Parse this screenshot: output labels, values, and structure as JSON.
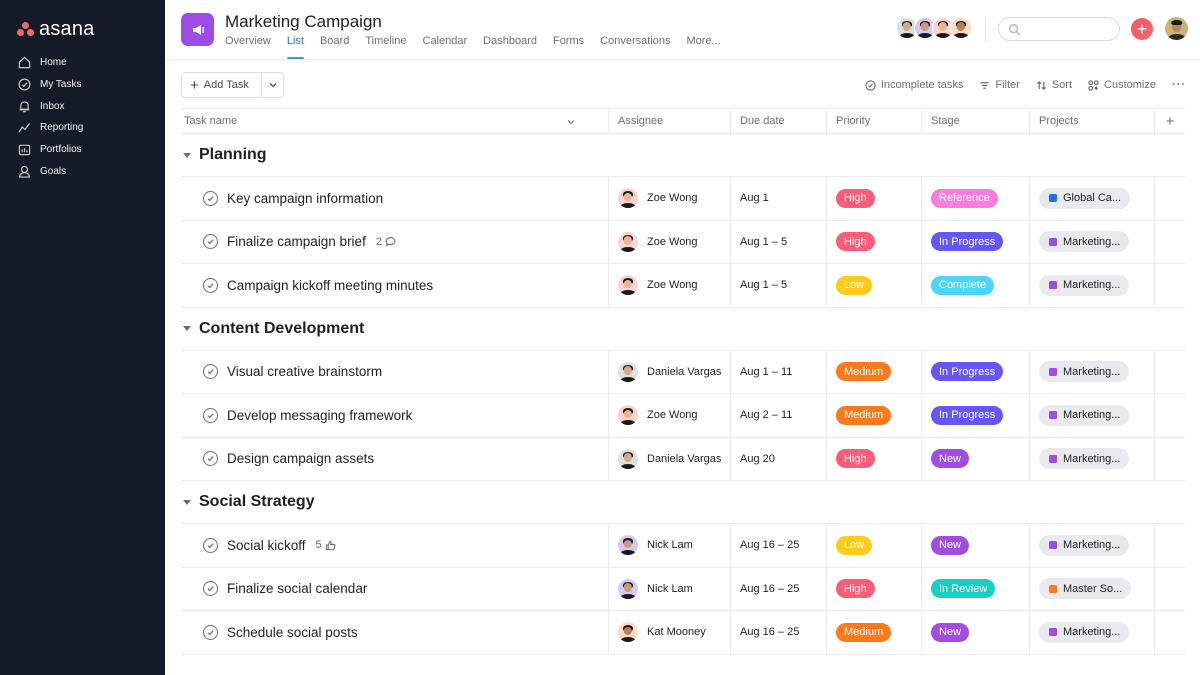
{
  "sidebar": {
    "logo_text": "asana",
    "items": [
      {
        "label": "Home",
        "icon": "home-icon"
      },
      {
        "label": "My Tasks",
        "icon": "check-circle-icon"
      },
      {
        "label": "Inbox",
        "icon": "bell-icon"
      },
      {
        "label": "Reporting",
        "icon": "trend-line-icon"
      },
      {
        "label": "Portfolios",
        "icon": "portfolio-icon"
      },
      {
        "label": "Goals",
        "icon": "person-goal-icon"
      }
    ]
  },
  "header": {
    "project_title": "Marketing Campaign",
    "project_icon": "megaphone-icon",
    "project_icon_color": "#9d4de4",
    "tabs": [
      {
        "label": "Overview",
        "active": false
      },
      {
        "label": "List",
        "active": true
      },
      {
        "label": "Board",
        "active": false
      },
      {
        "label": "Timeline",
        "active": false
      },
      {
        "label": "Calendar",
        "active": false
      },
      {
        "label": "Dashboard",
        "active": false
      },
      {
        "label": "Forms",
        "active": false
      },
      {
        "label": "Conversations",
        "active": false
      },
      {
        "label": "More...",
        "active": false
      }
    ],
    "members": [
      "Daniela Vargas",
      "Nick Lam",
      "Zoe Wong",
      "Kat Mooney"
    ],
    "search_placeholder": "",
    "add_button": "+"
  },
  "toolbar": {
    "add_task_label": "Add Task",
    "incomplete_label": "Incomplete tasks",
    "filter_label": "Filter",
    "sort_label": "Sort",
    "customize_label": "Customize",
    "more_label": "···"
  },
  "table": {
    "columns": {
      "name": "Task name",
      "assignee": "Assignee",
      "due": "Due date",
      "priority": "Priority",
      "stage": "Stage",
      "projects": "Projects",
      "add": "+"
    },
    "sections": [
      {
        "title": "Planning",
        "tasks": [
          {
            "name": "Key campaign information",
            "meta": "",
            "meta_icon": "",
            "assignee": "Zoe Wong",
            "due": "Aug 1",
            "priority": "High",
            "stage": "Reference",
            "project": "Global Ca...",
            "project_color": "#1f6feb"
          },
          {
            "name": "Finalize campaign brief",
            "meta": "2",
            "meta_icon": "comment-icon",
            "assignee": "Zoe Wong",
            "due": "Aug 1 – 5",
            "priority": "High",
            "stage": "In Progress",
            "project": "Marketing...",
            "project_color": "#a04de0"
          },
          {
            "name": "Campaign kickoff meeting minutes",
            "meta": "",
            "meta_icon": "",
            "assignee": "Zoe Wong",
            "due": "Aug 1 – 5",
            "priority": "Low",
            "stage": "Complete",
            "project": "Marketing...",
            "project_color": "#a04de0"
          }
        ]
      },
      {
        "title": "Content Development",
        "tasks": [
          {
            "name": "Visual creative brainstorm",
            "meta": "",
            "meta_icon": "",
            "assignee": "Daniela Vargas",
            "due": "Aug 1 – 11",
            "priority": "Medium",
            "stage": "In Progress",
            "project": "Marketing...",
            "project_color": "#a04de0"
          },
          {
            "name": "Develop messaging framework",
            "meta": "",
            "meta_icon": "",
            "assignee": "Zoe Wong",
            "due": "Aug 2 – 11",
            "priority": "Medium",
            "stage": "In Progress",
            "project": "Marketing...",
            "project_color": "#a04de0"
          },
          {
            "name": "Design campaign assets",
            "meta": "",
            "meta_icon": "",
            "assignee": "Daniela Vargas",
            "due": "Aug 20",
            "priority": "High",
            "stage": "New",
            "project": "Marketing...",
            "project_color": "#a04de0"
          }
        ]
      },
      {
        "title": "Social Strategy",
        "tasks": [
          {
            "name": "Social kickoff",
            "meta": "5",
            "meta_icon": "thumbs-up-icon",
            "assignee": "Nick Lam",
            "due": "Aug 16 – 25",
            "priority": "Low",
            "stage": "New",
            "project": "Marketing...",
            "project_color": "#a04de0"
          },
          {
            "name": "Finalize social calendar",
            "meta": "",
            "meta_icon": "",
            "assignee": "Nick Lam",
            "due": "Aug 16 – 25",
            "priority": "High",
            "stage": "In Review",
            "project": "Master So...",
            "project_color": "#fd7a1c"
          },
          {
            "name": "Schedule social posts",
            "meta": "",
            "meta_icon": "",
            "assignee": "Kat Mooney",
            "due": "Aug 16 – 25",
            "priority": "Medium",
            "stage": "New",
            "project": "Marketing...",
            "project_color": "#a04de0"
          }
        ]
      }
    ]
  },
  "colors": {
    "priority": {
      "High": "#f95d78",
      "Medium": "#fd7a1c",
      "Low": "#fdcc1a"
    },
    "stage": {
      "Reference": "#fa7ce0",
      "In Progress": "#6457f5",
      "Complete": "#4ad6f8",
      "New": "#a04de0",
      "In Review": "#14d1c4"
    },
    "avatar": {
      "Zoe Wong": "#fcd3d3",
      "Daniela Vargas": "#d9e2e3",
      "Nick Lam": "#d8c8f3",
      "Kat Mooney": "#ffdcc0"
    },
    "skin": {
      "Zoe Wong": "#e8b896",
      "Daniela Vargas": "#d8a888",
      "Nick Lam": "#c89a78",
      "Kat Mooney": "#b5805e"
    },
    "sidebar_bg": "#151b26",
    "accent": "#4a90e2"
  }
}
